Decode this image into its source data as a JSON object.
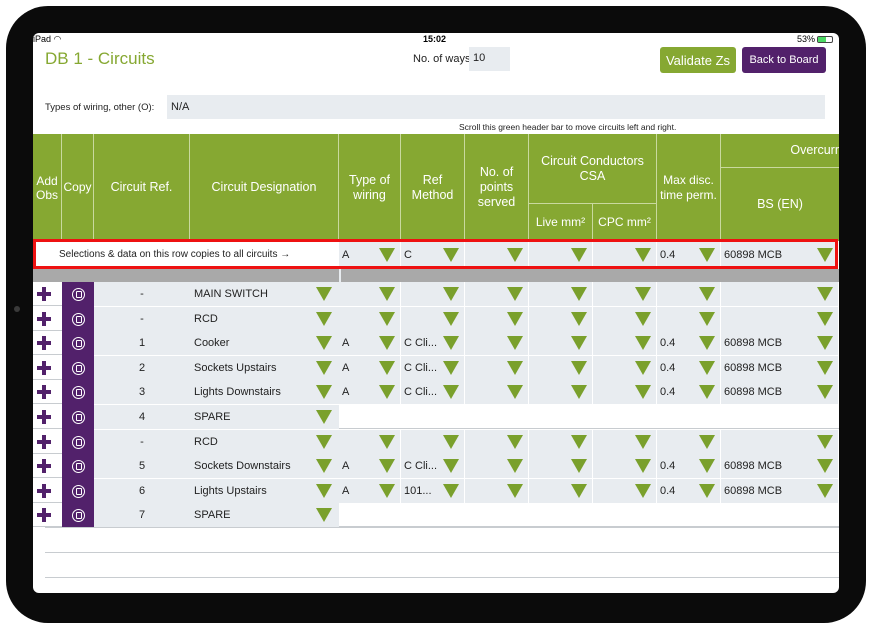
{
  "status_bar": {
    "device": "iPad",
    "time": "15:02",
    "battery": "53%"
  },
  "page": {
    "title": "DB 1  - Circuits",
    "ways_label": "No. of ways",
    "ways_value": "10",
    "validate_button": "Validate Zs",
    "back_button": "Back to Board",
    "wiring_label": "Types of wiring, other (O):",
    "wiring_value": "N/A",
    "scroll_hint": "Scroll this green header bar to move circuits left and right."
  },
  "header": {
    "add_obs": "Add Obs",
    "copy": "Copy",
    "circuit_ref": "Circuit Ref.",
    "circuit_designation": "Circuit Designation",
    "type_of_wiring": "Type of wiring",
    "ref_method": "Ref Method",
    "no_of_points": "No. of points served",
    "conductors_csa": "Circuit Conductors CSA",
    "live_mm2": "Live mm²",
    "cpc_mm2": "CPC mm²",
    "max_disc": "Max disc. time perm.",
    "overcurrent": "Overcurr",
    "bs_en": "BS (EN)"
  },
  "copy_row": {
    "label": "Selections & data on this row copies to all circuits →",
    "type_of_wiring": "A",
    "ref_method": "C",
    "no_of_points": "",
    "live_mm2": "",
    "cpc_mm2": "",
    "max_disc": "0.4",
    "bs_en": "60898 MCB"
  },
  "circuits": [
    {
      "ref": "-",
      "designation": "MAIN SWITCH",
      "type": "",
      "method": "",
      "max_disc": "",
      "bs_en": "",
      "spare": false
    },
    {
      "ref": "-",
      "designation": "RCD",
      "type": "",
      "method": "",
      "max_disc": "",
      "bs_en": "",
      "spare": false
    },
    {
      "ref": "1",
      "designation": "Cooker",
      "type": "A",
      "method": "C Cli...",
      "max_disc": "0.4",
      "bs_en": "60898 MCB",
      "spare": false
    },
    {
      "ref": "2",
      "designation": "Sockets Upstairs",
      "type": "A",
      "method": "C Cli...",
      "max_disc": "0.4",
      "bs_en": "60898 MCB",
      "spare": false
    },
    {
      "ref": "3",
      "designation": "Lights Downstairs",
      "type": "A",
      "method": "C Cli...",
      "max_disc": "0.4",
      "bs_en": "60898 MCB",
      "spare": false
    },
    {
      "ref": "4",
      "designation": "SPARE",
      "type": "",
      "method": "",
      "max_disc": "",
      "bs_en": "",
      "spare": true
    },
    {
      "ref": "-",
      "designation": "RCD",
      "type": "",
      "method": "",
      "max_disc": "",
      "bs_en": "",
      "spare": false
    },
    {
      "ref": "5",
      "designation": "Sockets Downstairs",
      "type": "A",
      "method": "C Cli...",
      "max_disc": "0.4",
      "bs_en": "60898 MCB",
      "spare": false
    },
    {
      "ref": "6",
      "designation": "Lights Upstairs",
      "type": "A",
      "method": "101...",
      "max_disc": "0.4",
      "bs_en": "60898 MCB",
      "spare": false
    },
    {
      "ref": "7",
      "designation": "SPARE",
      "type": "",
      "method": "",
      "max_disc": "",
      "bs_en": "",
      "spare": true
    }
  ],
  "colors": {
    "green": "#86a832",
    "purple": "#52216b",
    "highlight": "#ee1111",
    "cell_bg": "#e8ecf0"
  }
}
